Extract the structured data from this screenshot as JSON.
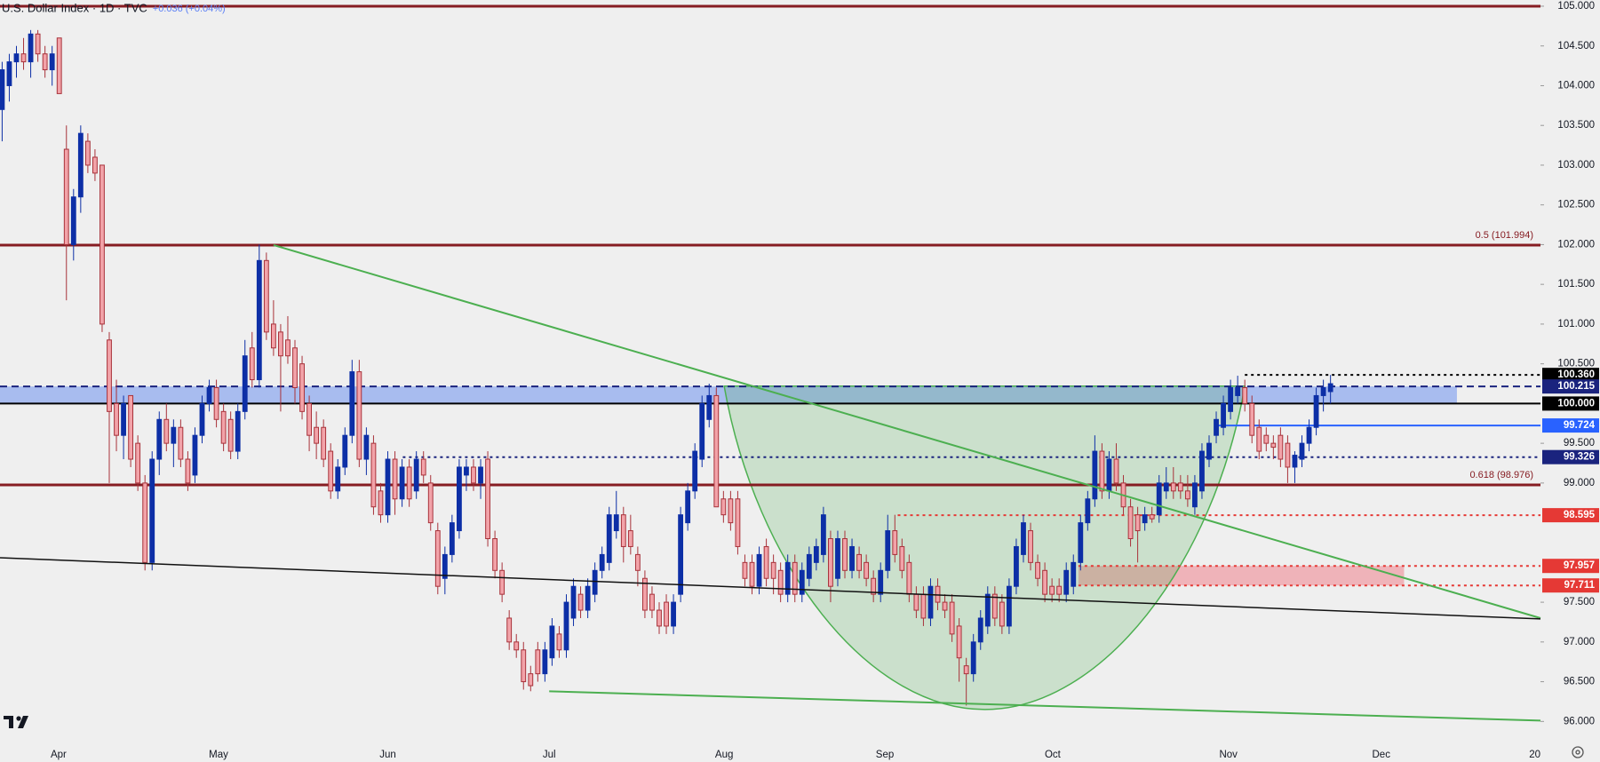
{
  "chart_data": {
    "type": "candlestick",
    "title": "U.S. Dollar Index · 1D · TVC",
    "subtitle": "+0.036 (+0.04%)",
    "up_color": "#0d2fa6",
    "down_color": "#f2a3a9",
    "down_edge": "#a8323a",
    "xlim": [
      -0.3,
      215.4
    ],
    "ylim": [
      95.713,
      105.078
    ],
    "xticks": [
      {
        "value": 7.9,
        "label": "Apr"
      },
      {
        "value": 30.3,
        "label": "May"
      },
      {
        "value": 54,
        "label": "Jun"
      },
      {
        "value": 76.6,
        "label": "Jul"
      },
      {
        "value": 101.1,
        "label": "Aug"
      },
      {
        "value": 123.6,
        "label": "Sep"
      },
      {
        "value": 147.1,
        "label": "Oct"
      },
      {
        "value": 171.7,
        "label": "Nov"
      },
      {
        "value": 193.1,
        "label": "Dec"
      },
      {
        "value": 215.4,
        "label": "20"
      }
    ],
    "yticks": [
      {
        "value": 96,
        "label": "96.000"
      },
      {
        "value": 96.5,
        "label": "96.500"
      },
      {
        "value": 97,
        "label": "97.000"
      },
      {
        "value": 97.5,
        "label": "97.500"
      },
      {
        "value": 99,
        "label": "99.000"
      },
      {
        "value": 99.5,
        "label": "99.500"
      },
      {
        "value": 100.5,
        "label": "100.500"
      },
      {
        "value": 101,
        "label": "101.000"
      },
      {
        "value": 101.5,
        "label": "101.500"
      },
      {
        "value": 102,
        "label": "102.000"
      },
      {
        "value": 102.5,
        "label": "102.500"
      },
      {
        "value": 103,
        "label": "103.000"
      },
      {
        "value": 103.5,
        "label": "103.500"
      },
      {
        "value": 104,
        "label": "104.000"
      },
      {
        "value": 104.5,
        "label": "104.500"
      },
      {
        "value": 105,
        "label": "105.000"
      }
    ],
    "zones": [
      {
        "x": [
          -0.3,
          203.7
        ],
        "y": [
          100,
          100.215
        ],
        "color": "rgba(98,138,240,0.5)"
      },
      {
        "x": [
          150.7,
          196.3
        ],
        "y": [
          97.711,
          97.957
        ],
        "color": "rgba(240,120,132,0.5)"
      }
    ],
    "cup": {
      "points": [
        [
          101.1,
          100.22
        ],
        [
          137.6,
          96.15
        ],
        [
          174,
          100.22
        ]
      ],
      "color": "#4caf50"
    },
    "fib_lines": [
      {
        "value": 105,
        "color": "#861c22"
      },
      {
        "value": 101.994,
        "label": "0.5 (101.994)",
        "color": "#861c22"
      },
      {
        "value": 98.976,
        "label": "0.618 (98.976)",
        "color": "#861c22"
      }
    ],
    "levels": [
      {
        "value": 100.36,
        "label": "100.360",
        "color": "#000000",
        "style": "dotted",
        "start": 174
      },
      {
        "value": 100.215,
        "label": "100.215",
        "color": "#1a237e",
        "style": "dashed",
        "start": -0.3
      },
      {
        "value": 100,
        "label": "100.000",
        "color": "#000000",
        "style": "solid",
        "start": -0.3
      },
      {
        "value": 99.724,
        "label": "99.724",
        "color": "#2962ff",
        "style": "solid",
        "start": 170
      },
      {
        "value": 99.326,
        "label": "99.326",
        "color": "#1a237e",
        "style": "dotted",
        "start": 56.1
      },
      {
        "value": 98.595,
        "label": "98.595",
        "color": "#e53935",
        "style": "dotted",
        "start": 125.4
      },
      {
        "value": 97.957,
        "label": "97.957",
        "color": "#e53935",
        "style": "dotted",
        "start": 150.7
      },
      {
        "value": 97.711,
        "label": "97.711",
        "color": "#e53935",
        "style": "dotted",
        "start": 150.7
      }
    ],
    "trendlines": [
      {
        "points": [
          [
            38,
            101.994
          ],
          [
            215.4,
            97.3
          ]
        ],
        "color": "#4caf50"
      },
      {
        "points": [
          [
            -0.3,
            98.06
          ],
          [
            215.4,
            97.29
          ]
        ],
        "color": "#111111"
      },
      {
        "points": [
          [
            76.6,
            96.38
          ],
          [
            215.4,
            96.01
          ]
        ],
        "color": "#4caf50"
      }
    ],
    "candles": [
      [
        103.7,
        104.3,
        103.3,
        104.2
      ],
      [
        104.0,
        104.4,
        103.8,
        104.3
      ],
      [
        104.3,
        104.5,
        104.1,
        104.4
      ],
      [
        104.4,
        104.6,
        104.2,
        104.3
      ],
      [
        104.3,
        104.7,
        104.1,
        104.65
      ],
      [
        104.65,
        104.7,
        104.3,
        104.4
      ],
      [
        104.4,
        104.5,
        104.1,
        104.2
      ],
      [
        104.2,
        104.5,
        104.0,
        104.4
      ],
      [
        104.6,
        104.6,
        103.9,
        103.9
      ],
      [
        103.2,
        103.5,
        101.3,
        102.0
      ],
      [
        102.0,
        102.7,
        101.8,
        102.6
      ],
      [
        102.6,
        103.5,
        102.4,
        103.4
      ],
      [
        103.3,
        103.4,
        102.9,
        103.0
      ],
      [
        103.1,
        103.2,
        102.8,
        102.9
      ],
      [
        103.0,
        103.0,
        100.9,
        101.0
      ],
      [
        100.8,
        100.9,
        99.0,
        99.9
      ],
      [
        100.0,
        100.3,
        99.4,
        99.6
      ],
      [
        99.6,
        100.1,
        99.3,
        100.0
      ],
      [
        100.1,
        100.1,
        99.2,
        99.3
      ],
      [
        99.5,
        99.6,
        98.9,
        99.0
      ],
      [
        99.0,
        99.1,
        97.9,
        98.0
      ],
      [
        98.0,
        99.4,
        97.9,
        99.3
      ],
      [
        99.3,
        99.9,
        99.1,
        99.8
      ],
      [
        99.8,
        100.0,
        99.4,
        99.5
      ],
      [
        99.5,
        99.8,
        99.2,
        99.7
      ],
      [
        99.7,
        99.8,
        99.2,
        99.3
      ],
      [
        99.3,
        99.4,
        98.9,
        99.0
      ],
      [
        99.1,
        99.7,
        99.0,
        99.6
      ],
      [
        99.6,
        100.1,
        99.5,
        100.0
      ],
      [
        100.0,
        100.3,
        99.9,
        100.2
      ],
      [
        100.2,
        100.3,
        99.7,
        99.8
      ],
      [
        99.9,
        100.0,
        99.4,
        99.5
      ],
      [
        99.8,
        99.9,
        99.3,
        99.4
      ],
      [
        99.4,
        100.0,
        99.3,
        99.9
      ],
      [
        99.9,
        100.8,
        99.8,
        100.6
      ],
      [
        100.7,
        100.9,
        100.2,
        100.3
      ],
      [
        100.3,
        102.0,
        100.2,
        101.8
      ],
      [
        101.8,
        101.9,
        100.8,
        100.9
      ],
      [
        101.0,
        101.3,
        100.6,
        100.7
      ],
      [
        100.9,
        101.0,
        99.9,
        100.6
      ],
      [
        100.8,
        101.1,
        100.5,
        100.6
      ],
      [
        100.7,
        100.8,
        100.0,
        100.2
      ],
      [
        100.5,
        100.6,
        99.8,
        99.9
      ],
      [
        100.0,
        100.1,
        99.4,
        99.6
      ],
      [
        99.7,
        99.9,
        99.3,
        99.5
      ],
      [
        99.7,
        99.8,
        99.2,
        99.3
      ],
      [
        99.4,
        99.5,
        98.8,
        98.9
      ],
      [
        98.9,
        99.3,
        98.8,
        99.2
      ],
      [
        99.2,
        99.7,
        99.1,
        99.6
      ],
      [
        99.6,
        100.55,
        99.5,
        100.4
      ],
      [
        100.4,
        100.55,
        99.2,
        99.3
      ],
      [
        99.3,
        99.7,
        99.1,
        99.6
      ],
      [
        99.5,
        99.6,
        98.6,
        98.7
      ],
      [
        98.9,
        99.0,
        98.5,
        98.6
      ],
      [
        98.6,
        99.4,
        98.5,
        99.3
      ],
      [
        99.3,
        99.4,
        98.6,
        98.8
      ],
      [
        98.8,
        99.3,
        98.7,
        99.2
      ],
      [
        99.2,
        99.3,
        98.7,
        98.8
      ],
      [
        98.9,
        99.4,
        98.8,
        99.3
      ],
      [
        99.3,
        99.4,
        99.0,
        99.1
      ],
      [
        99.0,
        99.1,
        98.4,
        98.5
      ],
      [
        98.4,
        98.5,
        97.6,
        97.7
      ],
      [
        97.8,
        98.2,
        97.6,
        98.1
      ],
      [
        98.1,
        98.6,
        98.0,
        98.5
      ],
      [
        98.4,
        99.3,
        98.3,
        99.2
      ],
      [
        99.1,
        99.3,
        98.9,
        99.2
      ],
      [
        99.2,
        99.3,
        98.9,
        99.0
      ],
      [
        99.0,
        99.3,
        98.8,
        99.2
      ],
      [
        99.3,
        99.4,
        98.2,
        98.3
      ],
      [
        98.3,
        98.4,
        97.8,
        97.9
      ],
      [
        97.9,
        98.0,
        97.5,
        97.6
      ],
      [
        97.3,
        97.4,
        96.9,
        97.0
      ],
      [
        97.0,
        97.1,
        96.8,
        96.9
      ],
      [
        96.9,
        97.0,
        96.4,
        96.5
      ],
      [
        96.6,
        96.7,
        96.38,
        96.45
      ],
      [
        96.9,
        97.0,
        96.5,
        96.6
      ],
      [
        96.6,
        97.0,
        96.5,
        96.9
      ],
      [
        96.8,
        97.3,
        96.7,
        97.2
      ],
      [
        97.1,
        97.2,
        96.8,
        96.9
      ],
      [
        96.9,
        97.6,
        96.8,
        97.5
      ],
      [
        97.3,
        97.8,
        97.2,
        97.7
      ],
      [
        97.6,
        97.7,
        97.3,
        97.4
      ],
      [
        97.4,
        97.8,
        97.3,
        97.7
      ],
      [
        97.6,
        98.0,
        97.5,
        97.9
      ],
      [
        97.9,
        98.2,
        97.8,
        98.1
      ],
      [
        98.0,
        98.7,
        97.9,
        98.6
      ],
      [
        98.4,
        98.9,
        98.3,
        98.6
      ],
      [
        98.6,
        98.7,
        98.0,
        98.2
      ],
      [
        98.4,
        98.6,
        98.1,
        98.2
      ],
      [
        98.1,
        98.2,
        97.7,
        97.9
      ],
      [
        97.8,
        97.9,
        97.3,
        97.4
      ],
      [
        97.6,
        97.7,
        97.3,
        97.4
      ],
      [
        97.4,
        97.5,
        97.1,
        97.2
      ],
      [
        97.5,
        97.6,
        97.1,
        97.2
      ],
      [
        97.2,
        97.6,
        97.1,
        97.5
      ],
      [
        97.6,
        98.7,
        97.5,
        98.6
      ],
      [
        98.5,
        99.0,
        98.4,
        98.9
      ],
      [
        98.9,
        99.5,
        98.8,
        99.4
      ],
      [
        99.3,
        100.1,
        99.2,
        100.0
      ],
      [
        99.8,
        100.25,
        99.7,
        100.1
      ],
      [
        100.1,
        100.2,
        98.7,
        98.7
      ],
      [
        98.8,
        98.9,
        98.5,
        98.6
      ],
      [
        98.8,
        98.9,
        98.4,
        98.5
      ],
      [
        98.8,
        98.9,
        98.1,
        98.2
      ],
      [
        98.0,
        98.1,
        97.7,
        97.8
      ],
      [
        98.0,
        98.1,
        97.6,
        97.7
      ],
      [
        97.7,
        98.2,
        97.6,
        98.1
      ],
      [
        98.2,
        98.3,
        97.7,
        97.8
      ],
      [
        98.0,
        98.1,
        97.6,
        97.8
      ],
      [
        97.9,
        98.0,
        97.5,
        97.6
      ],
      [
        97.6,
        98.1,
        97.5,
        98.0
      ],
      [
        98.0,
        98.1,
        97.5,
        97.6
      ],
      [
        97.6,
        98.0,
        97.5,
        97.9
      ],
      [
        97.8,
        98.2,
        97.7,
        98.1
      ],
      [
        98.0,
        98.3,
        97.9,
        98.2
      ],
      [
        98.1,
        98.7,
        98.0,
        98.6
      ],
      [
        98.3,
        98.4,
        97.5,
        97.7
      ],
      [
        97.8,
        98.4,
        97.7,
        98.3
      ],
      [
        98.3,
        98.4,
        97.8,
        97.9
      ],
      [
        97.9,
        98.3,
        97.8,
        98.2
      ],
      [
        98.1,
        98.2,
        97.8,
        97.9
      ],
      [
        98.0,
        98.1,
        97.7,
        97.8
      ],
      [
        97.8,
        97.9,
        97.5,
        97.6
      ],
      [
        97.6,
        98.0,
        97.5,
        97.9
      ],
      [
        97.9,
        98.6,
        97.8,
        98.4
      ],
      [
        98.4,
        98.6,
        98.0,
        98.1
      ],
      [
        98.2,
        98.3,
        97.8,
        97.9
      ],
      [
        98.0,
        98.1,
        97.5,
        97.6
      ],
      [
        97.6,
        97.7,
        97.3,
        97.4
      ],
      [
        97.6,
        97.7,
        97.2,
        97.3
      ],
      [
        97.3,
        97.8,
        97.2,
        97.7
      ],
      [
        97.7,
        97.8,
        97.4,
        97.5
      ],
      [
        97.5,
        97.6,
        97.3,
        97.4
      ],
      [
        97.5,
        97.6,
        97.0,
        97.1
      ],
      [
        97.2,
        97.3,
        96.5,
        96.8
      ],
      [
        96.7,
        96.8,
        96.2,
        96.6
      ],
      [
        96.6,
        97.1,
        96.5,
        97.0
      ],
      [
        97.0,
        97.4,
        96.9,
        97.3
      ],
      [
        97.2,
        97.7,
        97.1,
        97.6
      ],
      [
        97.6,
        97.7,
        97.2,
        97.3
      ],
      [
        97.5,
        97.6,
        97.1,
        97.2
      ],
      [
        97.2,
        97.8,
        97.1,
        97.7
      ],
      [
        97.7,
        98.3,
        97.6,
        98.2
      ],
      [
        98.1,
        98.6,
        98.0,
        98.5
      ],
      [
        98.4,
        98.5,
        97.9,
        98.0
      ],
      [
        98.0,
        98.1,
        97.7,
        97.8
      ],
      [
        97.9,
        98.0,
        97.5,
        97.6
      ],
      [
        97.7,
        97.8,
        97.5,
        97.6
      ],
      [
        97.7,
        97.8,
        97.5,
        97.6
      ],
      [
        97.6,
        98.0,
        97.5,
        97.9
      ],
      [
        97.7,
        98.1,
        97.6,
        98.0
      ],
      [
        98.0,
        98.6,
        97.9,
        98.5
      ],
      [
        98.5,
        98.9,
        98.4,
        98.8
      ],
      [
        98.8,
        99.6,
        98.7,
        99.4
      ],
      [
        99.4,
        99.5,
        98.8,
        98.9
      ],
      [
        98.9,
        99.4,
        98.8,
        99.3
      ],
      [
        99.3,
        99.5,
        98.9,
        99.0
      ],
      [
        99.0,
        99.1,
        98.6,
        98.7
      ],
      [
        98.7,
        98.8,
        98.2,
        98.3
      ],
      [
        98.6,
        98.7,
        98.0,
        98.4
      ],
      [
        98.5,
        98.7,
        98.4,
        98.6
      ],
      [
        98.6,
        98.7,
        98.5,
        98.55
      ],
      [
        98.6,
        99.1,
        98.5,
        99.0
      ],
      [
        98.9,
        99.2,
        98.8,
        99.0
      ],
      [
        99.0,
        99.2,
        98.8,
        98.9
      ],
      [
        99.0,
        99.1,
        98.8,
        98.9
      ],
      [
        98.9,
        99.1,
        98.7,
        98.8
      ],
      [
        98.7,
        99.1,
        98.6,
        99.0
      ],
      [
        98.9,
        99.5,
        98.8,
        99.4
      ],
      [
        99.3,
        99.6,
        99.2,
        99.5
      ],
      [
        99.6,
        99.9,
        99.5,
        99.8
      ],
      [
        99.7,
        100.1,
        99.6,
        100.0
      ],
      [
        99.9,
        100.3,
        99.8,
        100.2
      ],
      [
        100.1,
        100.35,
        100.0,
        100.2
      ],
      [
        100.2,
        100.3,
        99.9,
        100.0
      ],
      [
        100.0,
        100.1,
        99.5,
        99.6
      ],
      [
        99.7,
        99.8,
        99.3,
        99.4
      ],
      [
        99.6,
        99.7,
        99.4,
        99.5
      ],
      [
        99.5,
        99.6,
        99.3,
        99.45
      ],
      [
        99.6,
        99.7,
        99.2,
        99.3
      ],
      [
        99.5,
        99.6,
        99.0,
        99.2
      ],
      [
        99.2,
        99.4,
        99.0,
        99.35
      ],
      [
        99.3,
        99.6,
        99.2,
        99.5
      ],
      [
        99.5,
        99.8,
        99.4,
        99.7
      ],
      [
        99.7,
        100.2,
        99.6,
        100.1
      ],
      [
        100.1,
        100.3,
        99.9,
        100.2
      ],
      [
        100.15,
        100.36,
        100.0,
        100.25
      ]
    ]
  }
}
